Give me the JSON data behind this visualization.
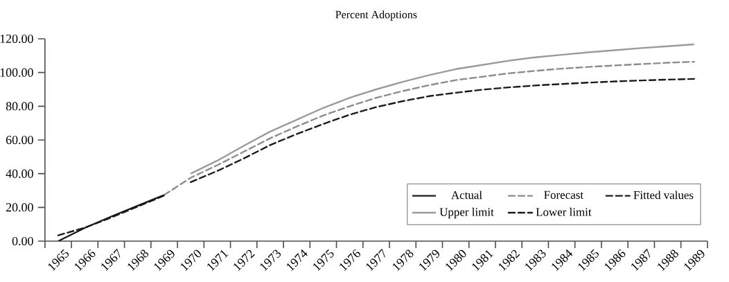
{
  "chart_data": {
    "type": "line",
    "title": "Percent Adoptions",
    "categories": [
      "1965",
      "1966",
      "1967",
      "1968",
      "1969",
      "1970",
      "1971",
      "1972",
      "1973",
      "1974",
      "1975",
      "1976",
      "1977",
      "1978",
      "1979",
      "1980",
      "1981",
      "1982",
      "1983",
      "1984",
      "1985",
      "1986",
      "1987",
      "1988",
      "1989"
    ],
    "series": [
      {
        "name": "Actual",
        "color": "#1a1a1a",
        "line_style": "solid",
        "values": [
          0,
          7.8,
          14.6,
          21,
          27.4,
          null,
          null,
          null,
          null,
          null,
          null,
          null,
          null,
          null,
          null,
          null,
          null,
          null,
          null,
          null,
          null,
          null,
          null,
          null,
          null
        ]
      },
      {
        "name": "Forecast",
        "color": "#8c8c8c",
        "line_style": "dashed",
        "values": [
          null,
          null,
          null,
          null,
          27.4,
          37.6,
          45,
          53,
          61,
          68,
          74.5,
          80,
          85,
          89,
          92.5,
          95.5,
          97.5,
          99.5,
          101,
          102.3,
          103.3,
          104.2,
          105,
          105.8,
          106.4
        ]
      },
      {
        "name": "Fitted values",
        "color": "#1a1a1a",
        "line_style": "dashed",
        "values": [
          3.4,
          8,
          14,
          20.5,
          27,
          null,
          null,
          null,
          null,
          null,
          null,
          null,
          null,
          null,
          null,
          null,
          null,
          null,
          null,
          null,
          null,
          null,
          null,
          null,
          null
        ]
      },
      {
        "name": "Upper limit",
        "color": "#9a9a9a",
        "line_style": "solid",
        "values": [
          null,
          null,
          null,
          null,
          null,
          40,
          47.7,
          56.5,
          65,
          72,
          79,
          85,
          90,
          94.5,
          98.5,
          102,
          104.5,
          107,
          109,
          110.5,
          112,
          113.2,
          114.5,
          115.6,
          116.7
        ]
      },
      {
        "name": "Lower limit",
        "color": "#1a1a1a",
        "line_style": "dashed",
        "values": [
          null,
          null,
          null,
          null,
          null,
          35,
          41.6,
          49,
          57,
          63.5,
          69.5,
          75,
          79.5,
          83,
          86,
          88,
          89.8,
          91.2,
          92.3,
          93.2,
          94,
          94.7,
          95.3,
          95.8,
          96.2
        ]
      }
    ],
    "ylim": [
      0,
      120
    ],
    "yticks": [
      {
        "value": 0,
        "label": "0.00"
      },
      {
        "value": 20,
        "label": "20.00"
      },
      {
        "value": 40,
        "label": "40.00"
      },
      {
        "value": 60,
        "label": "60.00"
      },
      {
        "value": 80,
        "label": "80.00"
      },
      {
        "value": 100,
        "label": "100.00"
      },
      {
        "value": 120,
        "label": "120.00"
      }
    ],
    "grid": false,
    "legend": "bottom right",
    "marker": "none"
  }
}
